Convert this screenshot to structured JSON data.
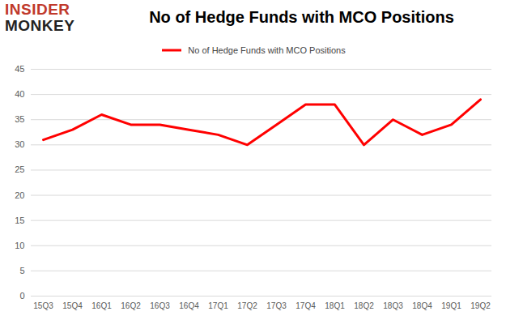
{
  "chart_data": {
    "type": "line",
    "title": "No of Hedge Funds with MCO Positions",
    "annotations": [
      "INSIDER",
      "MONKEY"
    ],
    "categories": [
      "15Q3",
      "15Q4",
      "16Q1",
      "16Q2",
      "16Q3",
      "16Q4",
      "17Q1",
      "17Q2",
      "17Q3",
      "17Q4",
      "18Q1",
      "18Q2",
      "18Q3",
      "18Q4",
      "19Q1",
      "19Q2"
    ],
    "series": [
      {
        "name": "No of Hedge Funds with MCO Positions",
        "color": "#ff0000",
        "values": [
          31,
          33,
          36,
          34,
          34,
          33,
          32,
          30,
          34,
          38,
          38,
          30,
          35,
          32,
          34,
          39
        ]
      }
    ],
    "ylim": [
      0,
      45
    ],
    "yticks": [
      0,
      5,
      10,
      15,
      20,
      25,
      30,
      35,
      40,
      45
    ],
    "grid": true,
    "legend": "top"
  }
}
